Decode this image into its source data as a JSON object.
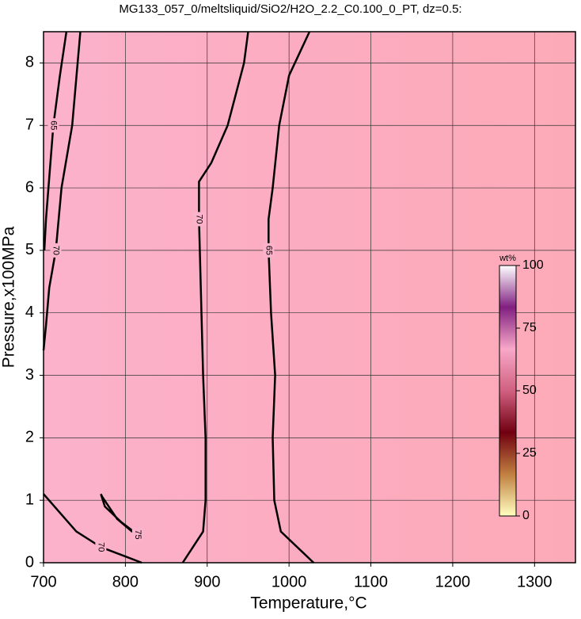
{
  "chart_data": {
    "type": "contour",
    "title": "MG133_057_0/meltsliquid/SiO2/H2O_2.2_C0.100_0_PT, dz=0.5:",
    "x_label": "Temperature,°C",
    "y_label": "Pressure,x100MPa",
    "xlim": [
      700,
      1350
    ],
    "xticks": [
      700,
      800,
      900,
      1000,
      1100,
      1200,
      1300
    ],
    "ylim": [
      0,
      8.5
    ],
    "yticks": [
      0,
      1,
      2,
      3,
      4,
      5,
      6,
      7,
      8
    ],
    "grid": true,
    "line_color": "#000000",
    "contours": [
      {
        "level": 70,
        "t": [
          870,
          895,
          898,
          898,
          895,
          893,
          890,
          890,
          905,
          925,
          945,
          950
        ],
        "p": [
          0,
          0.5,
          1,
          2,
          3,
          4,
          5.5,
          6.1,
          6.4,
          7,
          8,
          8.5
        ]
      },
      {
        "level": 65,
        "t": [
          1030,
          990,
          982,
          980,
          983,
          978,
          975,
          975,
          980,
          988,
          1000,
          1025
        ],
        "p": [
          0,
          0.5,
          1,
          2,
          3,
          4,
          5,
          5.5,
          6,
          7,
          7.8,
          8.5
        ]
      },
      {
        "level": 70,
        "t": [
          700,
          703,
          707,
          715,
          722,
          735,
          745
        ],
        "p": [
          3.4,
          3.8,
          4.4,
          5,
          6,
          7,
          8.5
        ]
      },
      {
        "level": 65,
        "t": [
          701,
          703,
          706,
          712,
          720,
          728
        ],
        "p": [
          5,
          5.5,
          6,
          7,
          7.8,
          8.5
        ]
      },
      {
        "level": 70,
        "t": [
          700,
          720,
          740,
          770,
          800,
          820
        ],
        "p": [
          1.1,
          0.8,
          0.5,
          0.25,
          0.1,
          0
        ]
      },
      {
        "level": 75,
        "t": [
          770,
          775,
          795,
          810,
          815,
          808,
          790,
          772,
          770
        ],
        "p": [
          1.1,
          0.9,
          0.65,
          0.5,
          0.45,
          0.5,
          0.7,
          1.05,
          1.1
        ]
      }
    ],
    "colorbar": {
      "label": "wt%",
      "lim": [
        0,
        100
      ],
      "ticks": [
        0,
        25,
        50,
        75,
        100
      ],
      "colors": [
        "#ffffc0",
        "#c08040",
        "#700010",
        "#d06080",
        "#f8a8c8",
        "#802080",
        "#ffffff"
      ]
    }
  }
}
